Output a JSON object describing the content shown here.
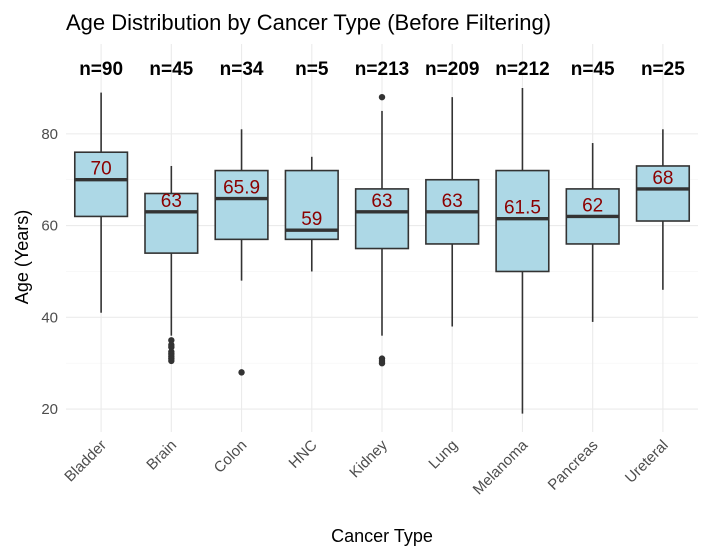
{
  "chart_data": {
    "type": "boxplot",
    "title": "Age Distribution by Cancer Type (Before Filtering)",
    "xlabel": "Cancer Type",
    "ylabel": "Age (Years)",
    "ylim": [
      15,
      90
    ],
    "yticks": [
      20,
      40,
      60,
      80
    ],
    "grid": true,
    "legend": "none",
    "colors": {
      "box_fill": "#add8e6",
      "box_stroke": "#333333",
      "median_label": "#8b0000"
    },
    "categories": [
      "Bladder",
      "Brain",
      "Colon",
      "HNC",
      "Kidney",
      "Lung",
      "Melanoma",
      "Pancreas",
      "Ureteral"
    ],
    "boxes": [
      {
        "category": "Bladder",
        "n_label": "n=90",
        "median_label": "70",
        "whisker_low": 41,
        "q1": 62,
        "median": 70,
        "q3": 76,
        "whisker_high": 89,
        "outliers": []
      },
      {
        "category": "Brain",
        "n_label": "n=45",
        "median_label": "63",
        "whisker_low": 36,
        "q1": 54,
        "median": 63,
        "q3": 67,
        "whisker_high": 73,
        "outliers": [
          35,
          34,
          33.5,
          32.5,
          32,
          31.5,
          31,
          30.5
        ]
      },
      {
        "category": "Colon",
        "n_label": "n=34",
        "median_label": "65.9",
        "whisker_low": 48,
        "q1": 57,
        "median": 65.9,
        "q3": 72,
        "whisker_high": 81,
        "outliers": [
          28
        ]
      },
      {
        "category": "HNC",
        "n_label": "n=5",
        "median_label": "59",
        "whisker_low": 50,
        "q1": 57,
        "median": 59,
        "q3": 72,
        "whisker_high": 75,
        "outliers": []
      },
      {
        "category": "Kidney",
        "n_label": "n=213",
        "median_label": "63",
        "whisker_low": 36,
        "q1": 55,
        "median": 63,
        "q3": 68,
        "whisker_high": 85,
        "outliers": [
          88,
          31,
          30.5,
          30
        ]
      },
      {
        "category": "Lung",
        "n_label": "n=209",
        "median_label": "63",
        "whisker_low": 38,
        "q1": 56,
        "median": 63,
        "q3": 70,
        "whisker_high": 88,
        "outliers": []
      },
      {
        "category": "Melanoma",
        "n_label": "n=212",
        "median_label": "61.5",
        "whisker_low": 19,
        "q1": 50,
        "median": 61.5,
        "q3": 72,
        "whisker_high": 90,
        "outliers": []
      },
      {
        "category": "Pancreas",
        "n_label": "n=45",
        "median_label": "62",
        "whisker_low": 39,
        "q1": 56,
        "median": 62,
        "q3": 68,
        "whisker_high": 78,
        "outliers": []
      },
      {
        "category": "Ureteral",
        "n_label": "n=25",
        "median_label": "68",
        "whisker_low": 46,
        "q1": 61,
        "median": 68,
        "q3": 73,
        "whisker_high": 81,
        "outliers": []
      }
    ]
  }
}
